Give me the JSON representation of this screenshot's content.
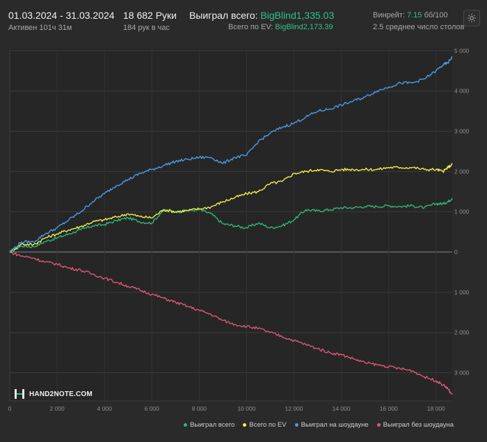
{
  "header": {
    "date_range": "01.03.2024 - 31.03.2024",
    "active_time": "Активен 101ч 31м",
    "hands_total": "18 682 Руки",
    "hands_per_hour": "184 рук в час",
    "won_total_label": "Выиграл всего:",
    "won_total_value": "BigBlind1,335.03",
    "ev_total_label": "Всего по EV:",
    "ev_total_value": "BigBlind2,173.39",
    "winrate_label": "Винрейт:",
    "winrate_value": "7.15",
    "winrate_unit": "бб/100",
    "avg_tables": "2.5 среднее число столов"
  },
  "logo": {
    "text": "HAND2NOTE.COM"
  },
  "colors": {
    "won_total": "#2fb67a",
    "ev": "#f2ef4a",
    "showdown": "#4a9be8",
    "non_showdown": "#e05577",
    "background": "#2a2a2a",
    "accent": "#2fc28a"
  },
  "icons": {
    "settings": "gear-icon",
    "logo": "hand2note-logo-icon"
  },
  "chart_data": {
    "type": "line",
    "x_tick_labels": [
      "0",
      "2 000",
      "4 000",
      "6 000",
      "8 000",
      "10 000",
      "12 000",
      "14 000",
      "16 000",
      "18 000"
    ],
    "y_tick_labels": [
      "5 000",
      "4 000",
      "3 000",
      "2 000",
      "1 000",
      "0",
      "1 000",
      "2 000",
      "3 000"
    ],
    "xlim": [
      0,
      18682
    ],
    "ylim": [
      -3700,
      5050
    ],
    "x_ticks": [
      0,
      2000,
      4000,
      6000,
      8000,
      10000,
      12000,
      14000,
      16000,
      18000
    ],
    "y_ticks": [
      5000,
      4000,
      3000,
      2000,
      1000,
      0,
      -1000,
      -2000,
      -3000
    ],
    "grid": true,
    "legend_position": "bottom-right",
    "x": [
      0,
      500,
      1000,
      1500,
      2000,
      2500,
      3000,
      3500,
      4000,
      4500,
      5000,
      5500,
      6000,
      6500,
      7000,
      7500,
      8000,
      8500,
      9000,
      9500,
      10000,
      10500,
      11000,
      11500,
      12000,
      12500,
      13000,
      13500,
      14000,
      14500,
      15000,
      15500,
      16000,
      16500,
      17000,
      17500,
      18000,
      18300,
      18500,
      18682
    ],
    "series": [
      {
        "name": "Выиграл всего",
        "color": "#2fb67a",
        "values": [
          0,
          150,
          130,
          260,
          350,
          450,
          550,
          650,
          680,
          780,
          850,
          750,
          720,
          1050,
          1000,
          1030,
          1050,
          950,
          700,
          650,
          600,
          720,
          600,
          650,
          800,
          1050,
          1020,
          1050,
          1100,
          1100,
          1130,
          1130,
          1150,
          1130,
          1150,
          1100,
          1200,
          1200,
          1250,
          1335
        ]
      },
      {
        "name": "Всего по EV",
        "color": "#f2ef4a",
        "values": [
          0,
          200,
          180,
          350,
          450,
          550,
          630,
          750,
          800,
          870,
          950,
          880,
          850,
          1050,
          1000,
          1030,
          1070,
          1120,
          1250,
          1350,
          1450,
          1500,
          1700,
          1750,
          1950,
          2000,
          2050,
          2000,
          2050,
          2050,
          2050,
          2050,
          2100,
          2100,
          2100,
          2050,
          2050,
          2000,
          2100,
          2173
        ]
      },
      {
        "name": "Выиграл на шоудауне",
        "color": "#4a9be8",
        "values": [
          0,
          250,
          250,
          450,
          600,
          800,
          1000,
          1250,
          1450,
          1650,
          1800,
          1950,
          2050,
          2150,
          2250,
          2300,
          2350,
          2350,
          2200,
          2350,
          2400,
          2750,
          2950,
          3100,
          3200,
          3350,
          3500,
          3550,
          3650,
          3750,
          3850,
          4000,
          4100,
          4200,
          4200,
          4300,
          4500,
          4650,
          4700,
          4850
        ]
      },
      {
        "name": "Выиграл без шоудауна",
        "color": "#e05577",
        "values": [
          0,
          -100,
          -150,
          -250,
          -300,
          -400,
          -450,
          -550,
          -650,
          -750,
          -850,
          -950,
          -1050,
          -1150,
          -1250,
          -1350,
          -1450,
          -1550,
          -1700,
          -1800,
          -1850,
          -1900,
          -2000,
          -2100,
          -2200,
          -2300,
          -2400,
          -2500,
          -2550,
          -2650,
          -2750,
          -2800,
          -2850,
          -2900,
          -2950,
          -3100,
          -3200,
          -3300,
          -3400,
          -3550
        ]
      }
    ]
  }
}
